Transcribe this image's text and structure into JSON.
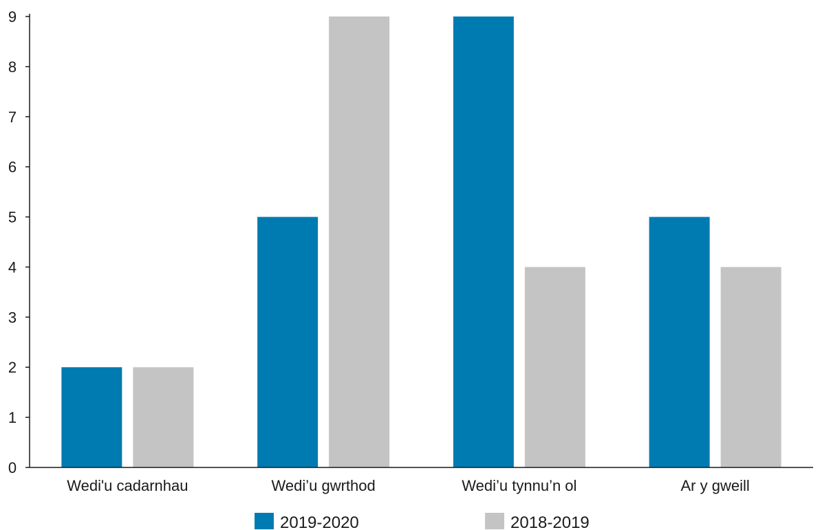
{
  "chart_data": {
    "type": "bar",
    "categories": [
      "Wedi'u cadarnhau",
      "Wedi’u gwrthod",
      "Wedi’u tynnu’n ol",
      "Ar y gweill"
    ],
    "series": [
      {
        "name": "2019-2020",
        "values": [
          2,
          5,
          9,
          5
        ],
        "color": "#007bb1"
      },
      {
        "name": "2018-2019",
        "values": [
          2,
          9,
          4,
          4
        ],
        "color": "#c4c4c4"
      }
    ],
    "ylim": [
      0,
      9
    ],
    "yticks": [
      0,
      1,
      2,
      3,
      4,
      5,
      6,
      7,
      8,
      9
    ],
    "grid": false,
    "legend_position": "bottom"
  }
}
